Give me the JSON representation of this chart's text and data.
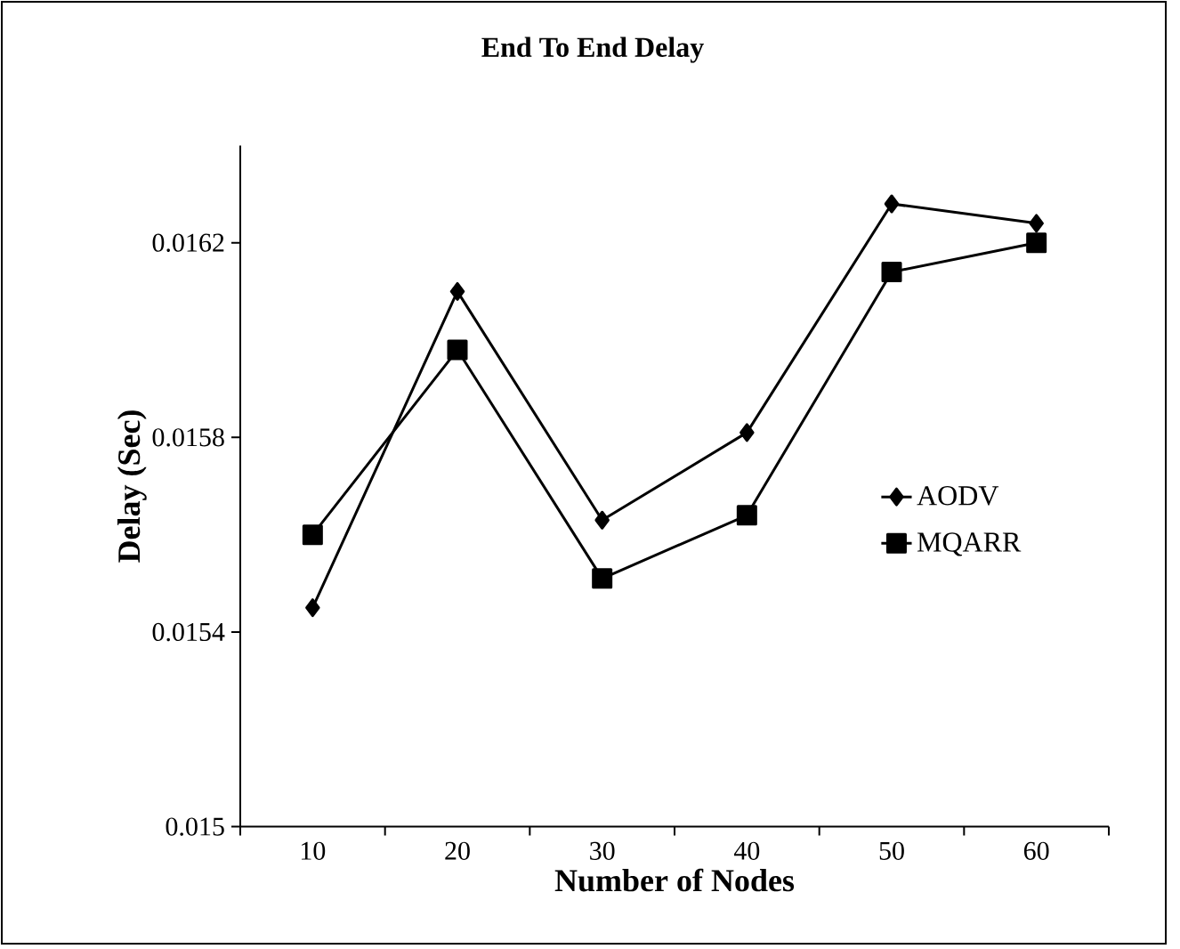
{
  "chart_data": {
    "type": "line",
    "title": "End To End Delay",
    "xlabel": "Number of Nodes",
    "ylabel": "Delay (Sec)",
    "categories": [
      "10",
      "20",
      "30",
      "40",
      "50",
      "60"
    ],
    "series": [
      {
        "name": "AODV",
        "color": "#000000",
        "marker": "diamond",
        "values": [
          0.01545,
          0.0161,
          0.01563,
          0.01581,
          0.01628,
          0.01624
        ]
      },
      {
        "name": "MQARR",
        "color": "#000000",
        "marker": "square",
        "values": [
          0.0156,
          0.01598,
          0.01551,
          0.01564,
          0.01614,
          0.0162
        ]
      }
    ],
    "ylim": [
      0.015,
      0.0164
    ],
    "yticks": [
      0.015,
      0.0154,
      0.0158,
      0.0162
    ],
    "grid": false,
    "legend": "right",
    "line_style": "solid"
  }
}
